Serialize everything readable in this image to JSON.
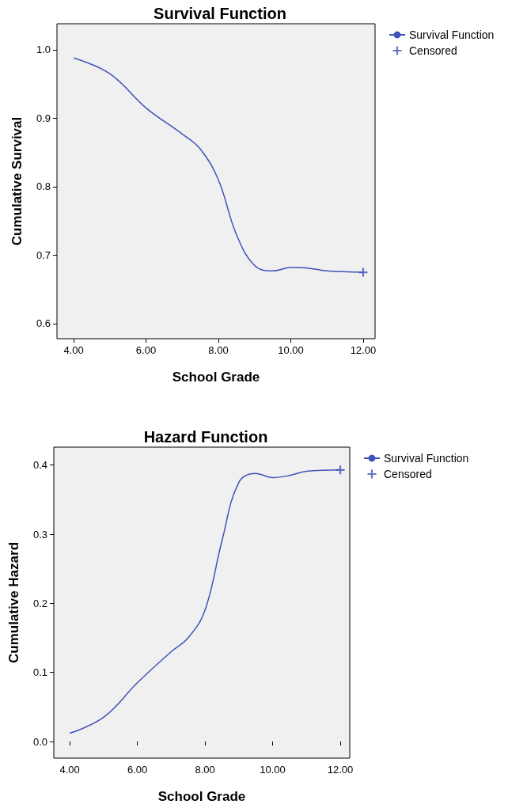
{
  "chart_data": [
    {
      "type": "line",
      "title": "Survival Function",
      "xlabel": "School Grade",
      "ylabel": "Cumulative Survival",
      "xlim": [
        3.54,
        12.33
      ],
      "xticks": [
        {
          "value": 4,
          "label": "4.00"
        },
        {
          "value": 6,
          "label": "6.00"
        },
        {
          "value": 8,
          "label": "8.00"
        },
        {
          "value": 10,
          "label": "10.00"
        },
        {
          "value": 12,
          "label": "12.00"
        }
      ],
      "ylim": [
        0.578,
        1.038
      ],
      "yticks": [
        0.6,
        0.7,
        0.8,
        0.9,
        {
          "value": 1,
          "label": "1.0"
        }
      ],
      "legend": "top right",
      "series": [
        {
          "name": "Survival Function",
          "color": "#4053b8",
          "marker": "none",
          "x": [
            4,
            5,
            6,
            7,
            7.5,
            8,
            8.5,
            9,
            9.5,
            10,
            10.5,
            11,
            12
          ],
          "values": [
            0.988,
            0.965,
            0.915,
            0.877,
            0.855,
            0.81,
            0.73,
            0.685,
            0.677,
            0.682,
            0.681,
            0.677,
            0.675
          ]
        },
        {
          "name": "Censored",
          "type": "scatter",
          "color": "#4053b8",
          "marker": "cross",
          "x": [
            12
          ],
          "values": [
            0.675
          ]
        }
      ]
    },
    {
      "type": "line",
      "title": "Hazard Function",
      "xlabel": "School Grade",
      "ylabel": "Cumulative Hazard",
      "xlim": [
        3.53,
        12.28
      ],
      "xticks": [
        {
          "value": 4,
          "label": "4.00"
        },
        {
          "value": 6,
          "label": "6.00"
        },
        {
          "value": 8,
          "label": "8.00"
        },
        {
          "value": 10,
          "label": "10.00"
        },
        {
          "value": 12,
          "label": "12.00"
        }
      ],
      "ylim": [
        -0.024,
        0.426
      ],
      "yticks": [
        {
          "value": 0,
          "label": "0.0"
        },
        0.1,
        0.2,
        0.3,
        0.4
      ],
      "legend": "top right",
      "series": [
        {
          "name": "Survival Function",
          "color": "#4053b8",
          "marker": "none",
          "x": [
            4,
            5,
            6,
            7,
            7.5,
            8,
            8.5,
            9,
            9.5,
            10,
            10.5,
            11,
            12
          ],
          "values": [
            0.012,
            0.035,
            0.085,
            0.13,
            0.15,
            0.19,
            0.29,
            0.375,
            0.388,
            0.382,
            0.385,
            0.391,
            0.393
          ]
        },
        {
          "name": "Censored",
          "type": "scatter",
          "color": "#4053b8",
          "marker": "cross",
          "x": [
            12
          ],
          "values": [
            0.393
          ]
        }
      ]
    }
  ]
}
